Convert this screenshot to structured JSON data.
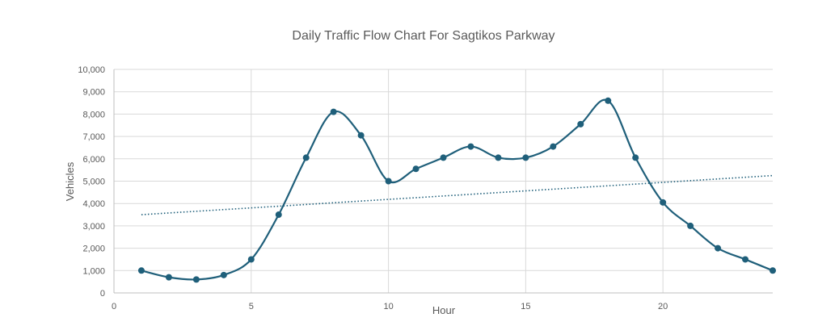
{
  "chart_data": {
    "type": "scatter",
    "title": "Daily Traffic Flow Chart For Sagtikos Parkway",
    "xlabel": "Hour",
    "ylabel": "Vehicles",
    "xlim": [
      0,
      24
    ],
    "ylim": [
      0,
      10000
    ],
    "x_ticks": [
      0,
      5,
      10,
      15,
      20
    ],
    "x_tick_labels": [
      "0",
      "5",
      "10",
      "15",
      "20"
    ],
    "y_ticks": [
      0,
      1000,
      2000,
      3000,
      4000,
      5000,
      6000,
      7000,
      8000,
      9000,
      10000
    ],
    "y_tick_labels": [
      "0",
      "1,000",
      "2,000",
      "3,000",
      "4,000",
      "5,000",
      "6,000",
      "7,000",
      "8,000",
      "9,000",
      "10,000"
    ],
    "grid": true,
    "series": [
      {
        "x": [
          1,
          2,
          3,
          4,
          5,
          6,
          7,
          8,
          9,
          10,
          11,
          12,
          13,
          14,
          15,
          16,
          17,
          18,
          19,
          20,
          21,
          22,
          23,
          24
        ],
        "y": [
          1000,
          700,
          600,
          800,
          1500,
          3500,
          6050,
          8100,
          7050,
          5000,
          5550,
          6050,
          6550,
          6050,
          6050,
          6550,
          7550,
          8600,
          6050,
          4050,
          3000,
          2000,
          1500,
          1000
        ],
        "color": "#1f5f7a",
        "style": "smooth line with markers"
      }
    ],
    "trendline": {
      "type": "linear",
      "x_range": [
        1,
        24
      ],
      "y_start": 3500,
      "y_end": 5250,
      "color": "#1f5f7a",
      "style": "dotted"
    }
  }
}
